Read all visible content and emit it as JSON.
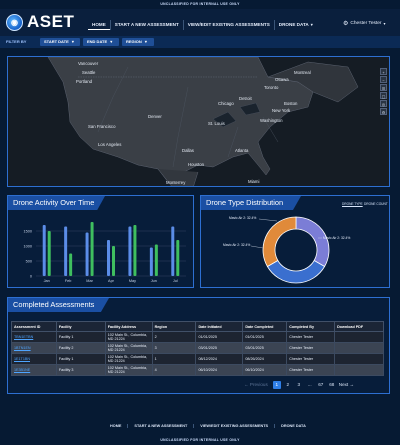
{
  "banner": {
    "top": "UNCLASSIFIED FOR INTERNAL USE ONLY",
    "bottom": "UNCLASSIFIED FOR INTERNAL USE ONLY"
  },
  "app": {
    "logo_text": "ASET"
  },
  "nav": {
    "home": "HOME",
    "start": "START A NEW ASSESSMENT",
    "view": "VIEW/EDIT EXISTING ASSESSMENTS",
    "drone": "DRONE DATA"
  },
  "user": {
    "name": "Chester Tester"
  },
  "filters": {
    "label": "FILTER BY",
    "start_date": "START DATE",
    "end_date": "END DATE",
    "region": "REGION"
  },
  "map": {
    "cities": [
      "Vancouver",
      "Seattle",
      "Portland",
      "San Francisco",
      "Los Angeles",
      "Denver",
      "Dallas",
      "Houston",
      "Monterrey",
      "Miami",
      "Atlanta",
      "St. Louis",
      "Chicago",
      "Detroit",
      "Toronto",
      "Ottawa",
      "Boston",
      "New York",
      "Washington",
      "Montreal"
    ]
  },
  "activity": {
    "title": "Drone Activity Over Time",
    "colors": {
      "series_a": "#5b8de8",
      "series_b": "#3fbf5f",
      "grid": "#3c4f6e"
    }
  },
  "chart_data": [
    {
      "type": "bar",
      "title": "Drone Activity Over Time",
      "categories": [
        "Jan",
        "Feb",
        "Mar",
        "Apr",
        "May",
        "Jun",
        "Jul"
      ],
      "ytick_labels": [
        "1500",
        "1000",
        "500",
        "0"
      ],
      "ylim": [
        0,
        1800
      ],
      "series": [
        {
          "values": [
            1700,
            1650,
            1450,
            1200,
            1650,
            950,
            1650
          ]
        },
        {
          "values": [
            1500,
            750,
            1800,
            1000,
            1700,
            1050,
            1200
          ]
        }
      ],
      "grid": true
    },
    {
      "type": "pie",
      "title": "Drone Type Distribution",
      "labels": [
        "Mavic Air 2",
        "Mavic Air 2",
        "Mavic Air 2"
      ],
      "slice_labels": [
        "Mavic Air 2: 32.4%",
        "Mavic Air 2: 32.4%",
        "Mavic Air 2: 32.4%"
      ],
      "values": [
        32.4,
        32.4,
        32.4
      ],
      "colors": [
        "#7b7dd6",
        "#3a6fcf",
        "#e08a3a"
      ]
    }
  ],
  "distribution": {
    "title": "Drone Type Distribution",
    "toggle_type": "DRONE TYPE",
    "toggle_count": "DRONE COUNT",
    "slice_label_right": "Mavic Air 2: 32.4%",
    "slice_label_top": "Mavic Air 2: 32.4%",
    "slice_label_left": "Mavic Air 2: 32.4%"
  },
  "assessments": {
    "title": "Completed Assessments",
    "columns": [
      "Assessment ID",
      "Facility",
      "Facility Address",
      "Region",
      "Date Initiated",
      "Date Completed",
      "Completed By",
      "Download PDF"
    ],
    "rows": [
      {
        "id": "TBN1ETBN",
        "facility": "Facility 1",
        "address_1": "102 Main St., Columbia,",
        "address_2": "MD 21224",
        "region": "2",
        "initiated": "01/01/2025",
        "completed": "01/01/2025",
        "by": "Chester Tester",
        "pdf": ""
      },
      {
        "id": "1BTN1EN",
        "facility": "Facility 2",
        "address_1": "102 Main St., Columbia,",
        "address_2": "MD 21224",
        "region": "3",
        "initiated": "03/01/2025",
        "completed": "03/01/2025",
        "by": "Chester Tester",
        "pdf": ""
      },
      {
        "id": "1E1T1BN",
        "facility": "Facility 1",
        "address_1": "102 Main St., Columbia,",
        "address_2": "MD 21224",
        "region": "1",
        "initiated": "08/12/2024",
        "completed": "08/26/2024",
        "by": "Chester Tester",
        "pdf": ""
      },
      {
        "id": "1E3B1NE",
        "facility": "Facility 3",
        "address_1": "102 Main St., Columbia,",
        "address_2": "MD 21224",
        "region": "4",
        "initiated": "06/10/2024",
        "completed": "06/10/2024",
        "by": "Chester Tester",
        "pdf": ""
      }
    ]
  },
  "pagination": {
    "previous": "Previous",
    "pages": [
      "1",
      "2",
      "3",
      "...",
      "67",
      "68"
    ],
    "current": "1",
    "next": "Next"
  },
  "footer": {
    "home": "HOME",
    "start": "START A NEW ASSESSMENT",
    "view": "VIEW/EDIT EXISTING ASSESSMENTS",
    "drone": "DRONE DATA"
  }
}
